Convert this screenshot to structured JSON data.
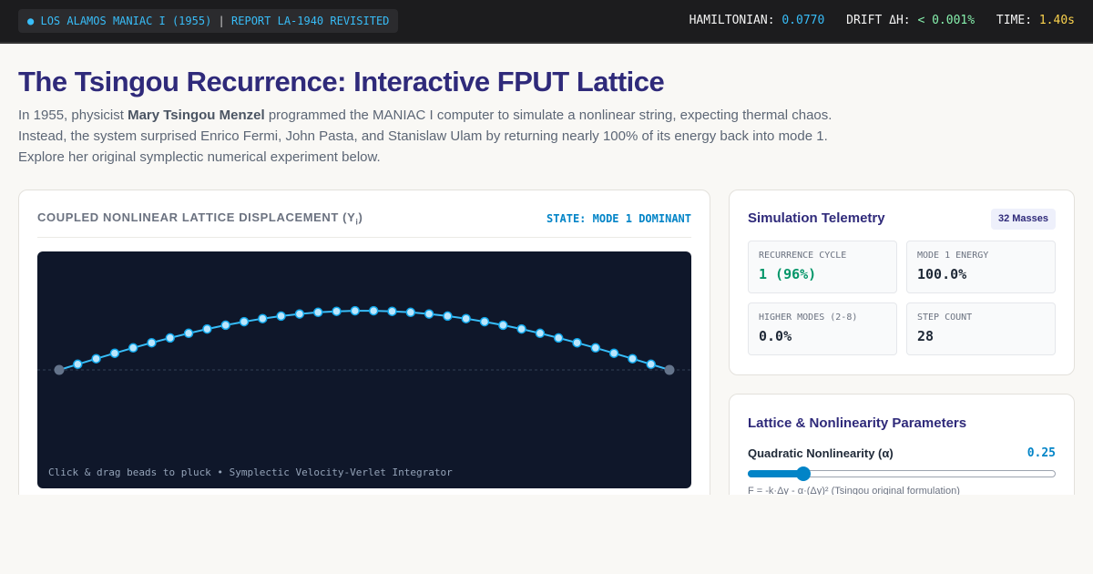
{
  "topbar": {
    "badge_dot": "●",
    "badge_source": "LOS ALAMOS MANIAC I (1955)",
    "badge_separator": "|",
    "badge_report": "REPORT LA-1940 REVISITED",
    "hamiltonian_label": "HAMILTONIAN:",
    "hamiltonian_value": "0.0770",
    "drift_label": "DRIFT ΔH:",
    "drift_value": "< 0.001%",
    "time_label": "TIME:",
    "time_value": "1.40s"
  },
  "page": {
    "title": "The Tsingou Recurrence: Interactive FPUT Lattice",
    "intro_before": "In 1955, physicist ",
    "intro_name": "Mary Tsingou Menzel",
    "intro_after": " programmed the MANIAC I computer to simulate a nonlinear string, expecting thermal chaos. Instead, the system surprised Enrico Fermi, John Pasta, and Stanislaw Ulam by returning nearly 100% of its energy back into mode 1. Explore her original symplectic numerical experiment below."
  },
  "lattice": {
    "title": "COUPLED NONLINEAR LATTICE DISPLACEMENT (Y",
    "title_sub": "i",
    "title_close": ")",
    "state": "STATE: MODE 1 DOMINANT",
    "hint": "Click & drag beads to pluck • Symplectic Velocity-Verlet Integrator",
    "mass_count": 32,
    "amplitude": 1.0,
    "colors": {
      "string": "#38bdf8",
      "bead_fill": "#bae6fd",
      "bead_stroke": "#0ea5e9",
      "anchor": "#64748b",
      "baseline": "#334155"
    }
  },
  "telemetry": {
    "title": "Simulation Telemetry",
    "badge": "32 Masses",
    "metrics": [
      {
        "label": "RECURRENCE CYCLE",
        "value": "1 (96%)"
      },
      {
        "label": "MODE 1 ENERGY",
        "value": "100.0%"
      },
      {
        "label": "HIGHER MODES (2-8)",
        "value": "0.0%"
      },
      {
        "label": "STEP COUNT",
        "value": "28"
      }
    ]
  },
  "params": {
    "title": "Lattice & Nonlinearity Parameters",
    "alpha_label": "Quadratic Nonlinearity (α)",
    "alpha_value": "0.25",
    "alpha_fraction": 0.18,
    "formula": "F = -k·Δy - α·(Δy)² (Tsingou original formulation)"
  }
}
